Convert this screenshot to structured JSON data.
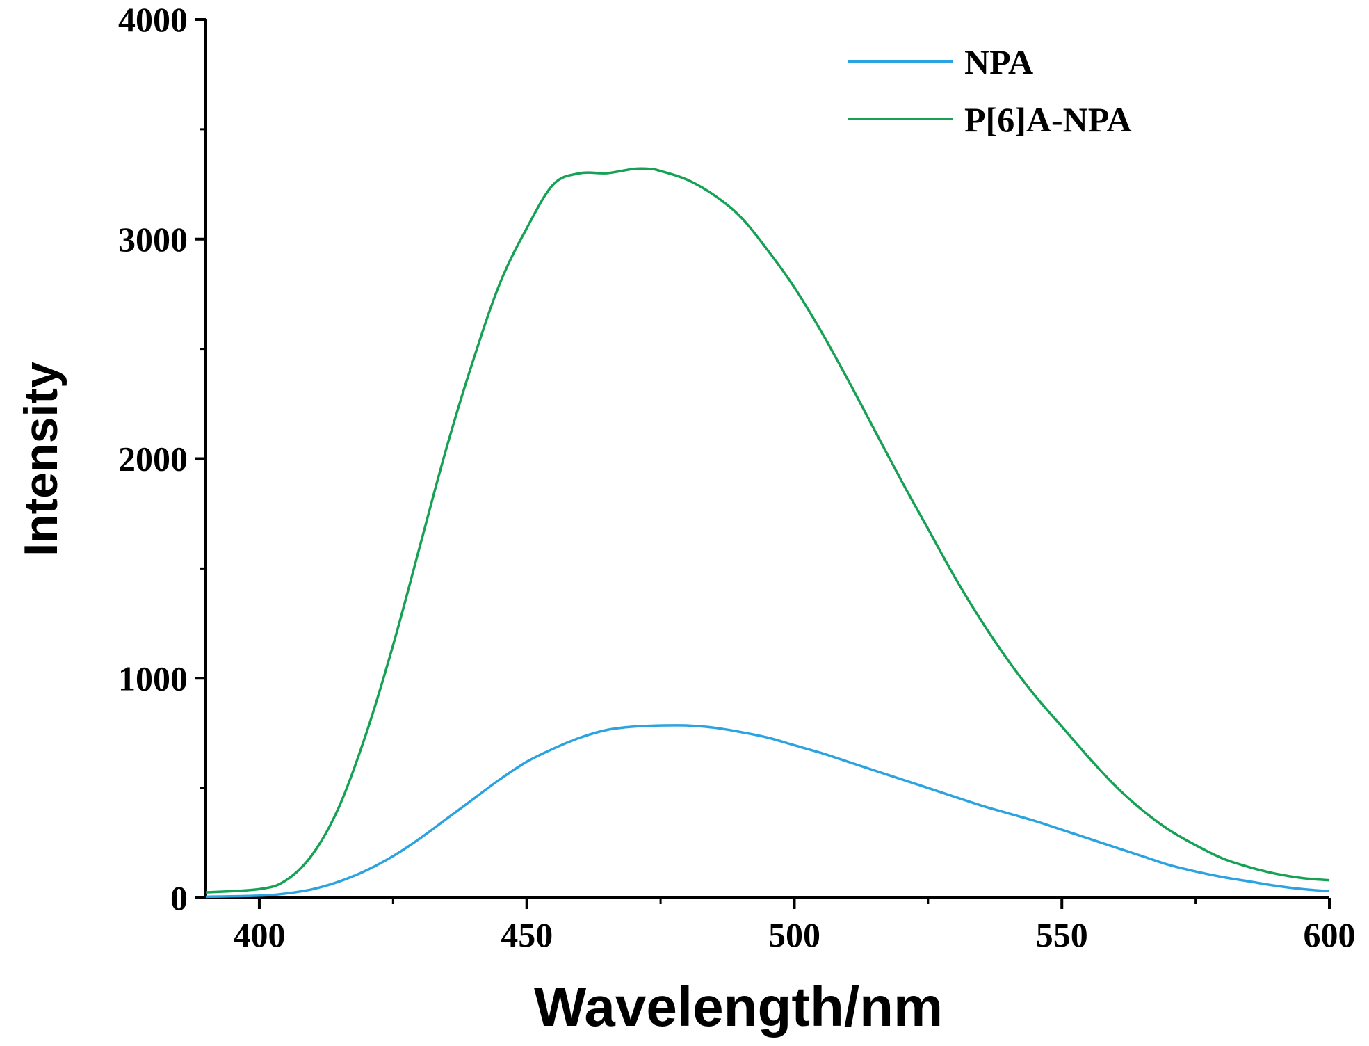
{
  "chart_data": {
    "type": "line",
    "title": "",
    "xlabel": "Wavelength/nm",
    "ylabel": "Intensity",
    "xlim": [
      390,
      600
    ],
    "ylim": [
      0,
      4000
    ],
    "x_ticks": [
      "400",
      "450",
      "500",
      "550",
      "600"
    ],
    "y_ticks": [
      "0",
      "1000",
      "2000",
      "3000",
      "4000"
    ],
    "x_tick_values": [
      400,
      450,
      500,
      550,
      600
    ],
    "y_tick_values": [
      0,
      1000,
      2000,
      3000,
      4000
    ],
    "x_minor_ticks": [
      425,
      475,
      525,
      575
    ],
    "y_minor_ticks": [
      500,
      1500,
      2500,
      3500
    ],
    "grid": false,
    "legend_position": "top-right",
    "series": [
      {
        "name": "NPA",
        "color": "#2aa3e0",
        "x": [
          390,
          400,
          405,
          410,
          415,
          420,
          425,
          430,
          435,
          440,
          445,
          450,
          455,
          460,
          465,
          470,
          475,
          480,
          485,
          490,
          495,
          500,
          505,
          510,
          515,
          520,
          525,
          530,
          535,
          540,
          545,
          550,
          555,
          560,
          565,
          570,
          575,
          580,
          585,
          590,
          595,
          600
        ],
        "y": [
          5,
          10,
          20,
          40,
          75,
          125,
          190,
          270,
          360,
          450,
          540,
          620,
          680,
          730,
          765,
          780,
          785,
          785,
          775,
          755,
          730,
          695,
          660,
          620,
          580,
          540,
          500,
          460,
          420,
          385,
          350,
          310,
          270,
          230,
          190,
          150,
          120,
          95,
          75,
          55,
          40,
          30
        ]
      },
      {
        "name": "P[6]A-NPA",
        "color": "#17a155",
        "x": [
          390,
          400,
          405,
          410,
          415,
          420,
          425,
          430,
          435,
          440,
          445,
          450,
          455,
          460,
          465,
          470,
          473,
          475,
          480,
          485,
          490,
          495,
          500,
          505,
          510,
          515,
          520,
          525,
          530,
          535,
          540,
          545,
          550,
          555,
          560,
          565,
          570,
          575,
          580,
          585,
          590,
          595,
          600
        ],
        "y": [
          25,
          40,
          80,
          200,
          420,
          750,
          1150,
          1600,
          2050,
          2450,
          2800,
          3050,
          3250,
          3300,
          3300,
          3320,
          3320,
          3310,
          3270,
          3200,
          3100,
          2950,
          2780,
          2580,
          2360,
          2130,
          1900,
          1680,
          1460,
          1260,
          1080,
          920,
          780,
          640,
          510,
          400,
          310,
          240,
          180,
          140,
          110,
          90,
          80
        ]
      }
    ]
  }
}
